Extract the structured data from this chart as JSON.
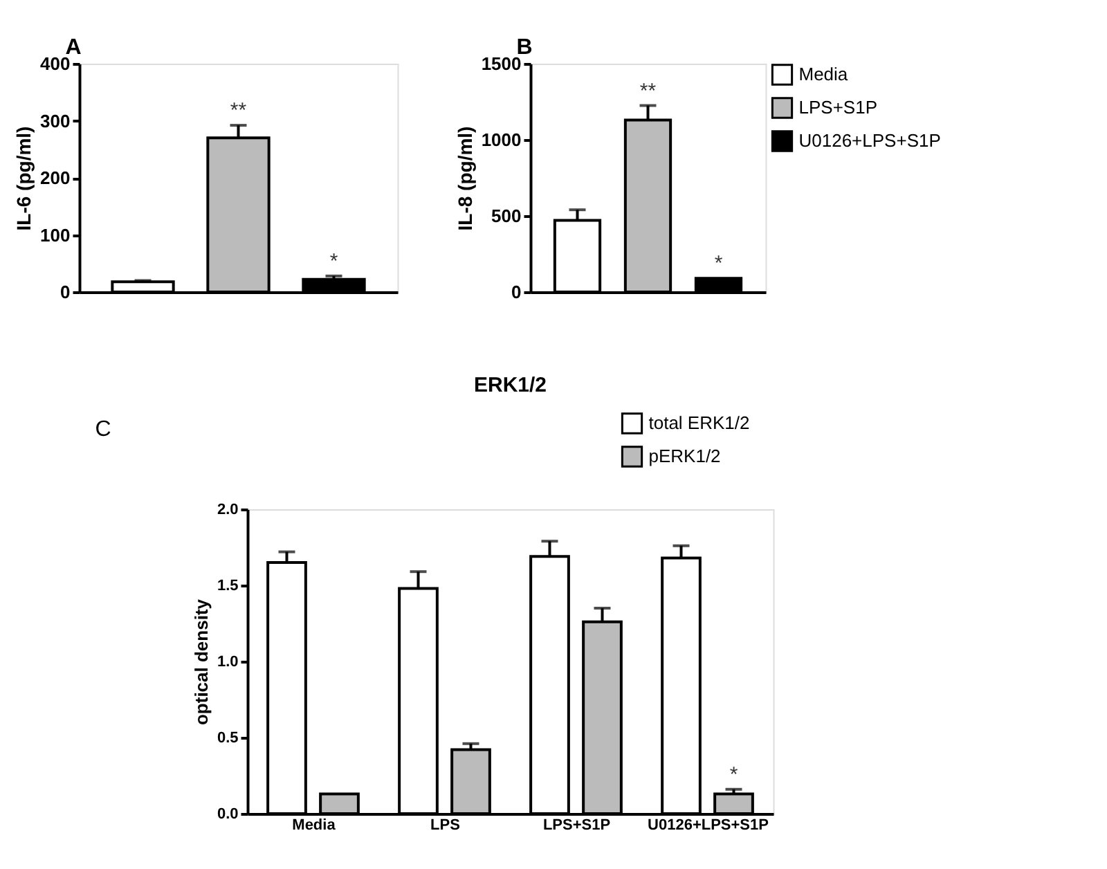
{
  "chart_data": [
    {
      "type": "bar",
      "ylabel": "IL-6 (pg/ml)",
      "annotations": [
        "A"
      ],
      "categories": [
        null
      ],
      "ylim": [
        0,
        400
      ],
      "yticks": [
        0,
        100,
        200,
        300,
        400
      ],
      "series": [
        {
          "color": "#ffffff",
          "values": [
            18
          ],
          "errors": [
            2
          ]
        },
        {
          "color": "#bbbbbb",
          "values": [
            270
          ],
          "errors": [
            22
          ],
          "value_labels": [
            "**"
          ]
        },
        {
          "color": "#000000",
          "values": [
            22
          ],
          "errors": [
            6
          ],
          "value_labels": [
            "*"
          ]
        }
      ]
    },
    {
      "type": "bar",
      "ylabel": "IL-8 (pg/ml)",
      "annotations": [
        "B"
      ],
      "categories": [
        null
      ],
      "ylim": [
        0,
        1500
      ],
      "yticks": [
        0,
        500,
        1000,
        1500
      ],
      "legend": "right",
      "series": [
        {
          "name": "Media",
          "color": "#ffffff",
          "values": [
            470
          ],
          "errors": [
            70
          ]
        },
        {
          "name": "LPS+S1P",
          "color": "#bbbbbb",
          "values": [
            1130
          ],
          "errors": [
            95
          ],
          "value_labels": [
            "**"
          ]
        },
        {
          "name": "U0126+LPS+S1P",
          "color": "#000000",
          "values": [
            90
          ],
          "value_labels": [
            "*"
          ]
        }
      ]
    },
    {
      "type": "bar",
      "title": "ERK1/2",
      "ylabel": "optical density",
      "annotations": [
        "C"
      ],
      "categories": [
        "Media",
        "LPS",
        "LPS+S1P",
        "U0126+LPS+S1P"
      ],
      "ylim": [
        0,
        2
      ],
      "yticks": [
        {
          "value": 0,
          "label": "0.0"
        },
        0.5,
        {
          "value": 1,
          "label": "1.0"
        },
        1.5,
        {
          "value": 2,
          "label": "2.0"
        }
      ],
      "legend": "top right",
      "series": [
        {
          "name": "total ERK1/2",
          "color": "#ffffff",
          "values": [
            1.65,
            1.48,
            1.69,
            1.68
          ],
          "errors": [
            0.07,
            0.11,
            0.1,
            0.08
          ]
        },
        {
          "name": "pERK1/2",
          "color": "#bbbbbb",
          "values": [
            0.13,
            0.42,
            1.26,
            0.13
          ],
          "errors": [
            null,
            0.04,
            0.09,
            0.03
          ],
          "value_labels": [
            null,
            null,
            null,
            "*"
          ]
        }
      ]
    }
  ]
}
